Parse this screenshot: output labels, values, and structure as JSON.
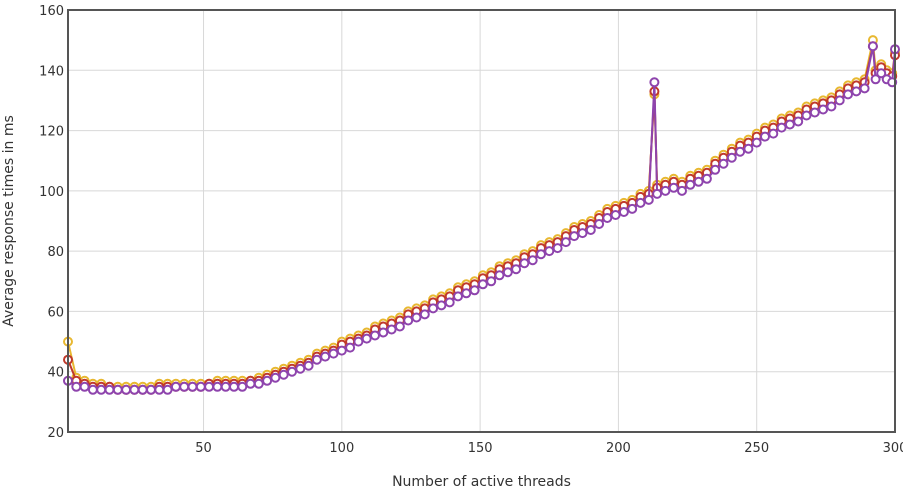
{
  "chart_data": {
    "type": "line",
    "title": "",
    "xlabel": "Number of active threads",
    "ylabel": "Average response times in ms",
    "xlim": [
      1,
      300
    ],
    "ylim": [
      20,
      160
    ],
    "x_ticks": [
      50,
      100,
      150,
      200,
      250,
      300
    ],
    "y_ticks": [
      20,
      40,
      60,
      80,
      100,
      120,
      140,
      160
    ],
    "grid": true,
    "legend": "none",
    "x": [
      1,
      4,
      7,
      10,
      13,
      16,
      19,
      22,
      25,
      28,
      31,
      34,
      37,
      40,
      43,
      46,
      49,
      52,
      55,
      58,
      61,
      64,
      67,
      70,
      73,
      76,
      79,
      82,
      85,
      88,
      91,
      94,
      97,
      100,
      103,
      106,
      109,
      112,
      115,
      118,
      121,
      124,
      127,
      130,
      133,
      136,
      139,
      142,
      145,
      148,
      151,
      154,
      157,
      160,
      163,
      166,
      169,
      172,
      175,
      178,
      181,
      184,
      187,
      190,
      193,
      196,
      199,
      202,
      205,
      208,
      211,
      213,
      214,
      217,
      220,
      223,
      226,
      229,
      232,
      235,
      238,
      241,
      244,
      247,
      250,
      253,
      256,
      259,
      262,
      265,
      268,
      271,
      274,
      277,
      280,
      283,
      286,
      289,
      292,
      293,
      295,
      297,
      299,
      300
    ],
    "series": [
      {
        "color": "#e8b830",
        "values": [
          50,
          38,
          37,
          36,
          36,
          35,
          35,
          35,
          35,
          35,
          35,
          36,
          36,
          36,
          36,
          36,
          36,
          36,
          37,
          37,
          37,
          37,
          37,
          38,
          39,
          40,
          41,
          42,
          43,
          44,
          46,
          47,
          48,
          50,
          51,
          52,
          53,
          55,
          56,
          57,
          58,
          60,
          61,
          62,
          64,
          65,
          66,
          68,
          69,
          70,
          72,
          73,
          75,
          76,
          77,
          79,
          80,
          82,
          83,
          84,
          86,
          88,
          89,
          90,
          92,
          94,
          95,
          96,
          97,
          99,
          100,
          132,
          102,
          103,
          104,
          103,
          105,
          106,
          107,
          110,
          112,
          114,
          116,
          117,
          119,
          121,
          122,
          124,
          125,
          126,
          128,
          129,
          130,
          131,
          133,
          135,
          136,
          137,
          150,
          140,
          142,
          140,
          139,
          146
        ]
      },
      {
        "color": "#c0392b",
        "values": [
          44,
          37,
          36,
          35,
          35,
          35,
          34,
          34,
          34,
          34,
          34,
          35,
          35,
          35,
          35,
          35,
          35,
          36,
          36,
          36,
          36,
          36,
          37,
          37,
          38,
          39,
          40,
          41,
          42,
          43,
          45,
          46,
          47,
          49,
          50,
          51,
          52,
          54,
          55,
          56,
          57,
          59,
          60,
          61,
          63,
          64,
          65,
          67,
          68,
          69,
          71,
          72,
          74,
          75,
          76,
          78,
          79,
          81,
          82,
          83,
          85,
          87,
          88,
          89,
          91,
          93,
          94,
          95,
          96,
          98,
          99,
          133,
          101,
          102,
          103,
          102,
          104,
          105,
          106,
          109,
          111,
          113,
          115,
          116,
          118,
          120,
          121,
          123,
          124,
          125,
          127,
          128,
          129,
          130,
          132,
          134,
          135,
          136,
          148,
          139,
          141,
          139,
          138,
          145
        ]
      },
      {
        "color": "#8e44ad",
        "values": [
          37,
          35,
          35,
          34,
          34,
          34,
          34,
          34,
          34,
          34,
          34,
          34,
          34,
          35,
          35,
          35,
          35,
          35,
          35,
          35,
          35,
          35,
          36,
          36,
          37,
          38,
          39,
          40,
          41,
          42,
          44,
          45,
          46,
          47,
          48,
          50,
          51,
          52,
          53,
          54,
          55,
          57,
          58,
          59,
          61,
          62,
          63,
          65,
          66,
          67,
          69,
          70,
          72,
          73,
          74,
          76,
          77,
          79,
          80,
          81,
          83,
          85,
          86,
          87,
          89,
          91,
          92,
          93,
          94,
          96,
          97,
          136,
          99,
          100,
          101,
          100,
          102,
          103,
          104,
          107,
          109,
          111,
          113,
          114,
          116,
          118,
          119,
          121,
          122,
          123,
          125,
          126,
          127,
          128,
          130,
          132,
          133,
          134,
          148,
          137,
          139,
          137,
          136,
          147
        ]
      }
    ]
  }
}
